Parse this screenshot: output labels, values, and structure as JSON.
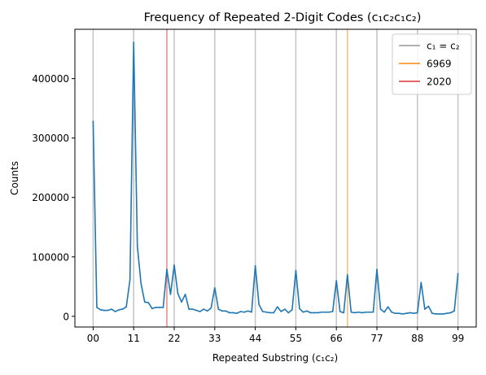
{
  "chart_data": {
    "type": "line",
    "title": "Frequency of Repeated 2-Digit Codes (c₁c₂c₁c₂)",
    "xlabel": "Repeated Substring (c₁c₂)",
    "ylabel": "Counts",
    "xlim": [
      -4.95,
      103.95
    ],
    "ylim": [
      -18000,
      483000
    ],
    "grid": false,
    "legend_position": "upper right",
    "x_ticks": [
      0,
      11,
      22,
      33,
      44,
      55,
      66,
      77,
      88,
      99
    ],
    "x_tick_labels": [
      "00",
      "11",
      "22",
      "33",
      "44",
      "55",
      "66",
      "77",
      "88",
      "99"
    ],
    "y_ticks": [
      0,
      100000,
      200000,
      300000,
      400000
    ],
    "y_tick_labels": [
      "0",
      "100000",
      "200000",
      "300000",
      "400000"
    ],
    "vertical_lines": [
      {
        "label": "c₁ = c₂",
        "color": "#b0b0b0",
        "x": [
          0,
          11,
          22,
          33,
          44,
          55,
          66,
          77,
          88,
          99
        ]
      },
      {
        "label": "6969",
        "color": "#ffa64d",
        "x": [
          69
        ]
      },
      {
        "label": "2020",
        "color": "#e8666a",
        "x": [
          20
        ]
      }
    ],
    "series": [
      {
        "color": "#1f77b4",
        "x": [
          0,
          1,
          2,
          3,
          4,
          5,
          6,
          7,
          8,
          9,
          10,
          11,
          12,
          13,
          14,
          15,
          16,
          17,
          18,
          19,
          20,
          21,
          22,
          23,
          24,
          25,
          26,
          27,
          28,
          29,
          30,
          31,
          32,
          33,
          34,
          35,
          36,
          37,
          38,
          39,
          40,
          41,
          42,
          43,
          44,
          45,
          46,
          47,
          48,
          49,
          50,
          51,
          52,
          53,
          54,
          55,
          56,
          57,
          58,
          59,
          60,
          61,
          62,
          63,
          64,
          65,
          66,
          67,
          68,
          69,
          70,
          71,
          72,
          73,
          74,
          75,
          76,
          77,
          78,
          79,
          80,
          81,
          82,
          83,
          84,
          85,
          86,
          87,
          88,
          89,
          90,
          91,
          92,
          93,
          94,
          95,
          96,
          97,
          98,
          99
        ],
        "values": [
          328000,
          15000,
          11000,
          10000,
          10000,
          12000,
          8000,
          11000,
          12000,
          16000,
          62000,
          461000,
          118000,
          55000,
          24000,
          23000,
          13000,
          15000,
          15000,
          15000,
          79000,
          37000,
          86000,
          38000,
          24000,
          37000,
          12000,
          12000,
          10000,
          8000,
          12000,
          9000,
          14000,
          48000,
          12000,
          9000,
          9000,
          6000,
          6000,
          5000,
          8000,
          7000,
          9000,
          7000,
          85000,
          20000,
          8000,
          7000,
          6000,
          6000,
          16000,
          8000,
          12000,
          6000,
          11000,
          77000,
          13000,
          7000,
          9000,
          6000,
          6000,
          6000,
          7000,
          7000,
          7000,
          8000,
          60000,
          8000,
          6000,
          70000,
          7000,
          6000,
          7000,
          6000,
          7000,
          7000,
          7000,
          79000,
          12000,
          7000,
          16000,
          7000,
          5000,
          5000,
          4000,
          5000,
          6000,
          5000,
          6000,
          57000,
          12000,
          17000,
          5000,
          4000,
          4000,
          4000,
          5000,
          6000,
          9000,
          72000
        ]
      }
    ]
  }
}
